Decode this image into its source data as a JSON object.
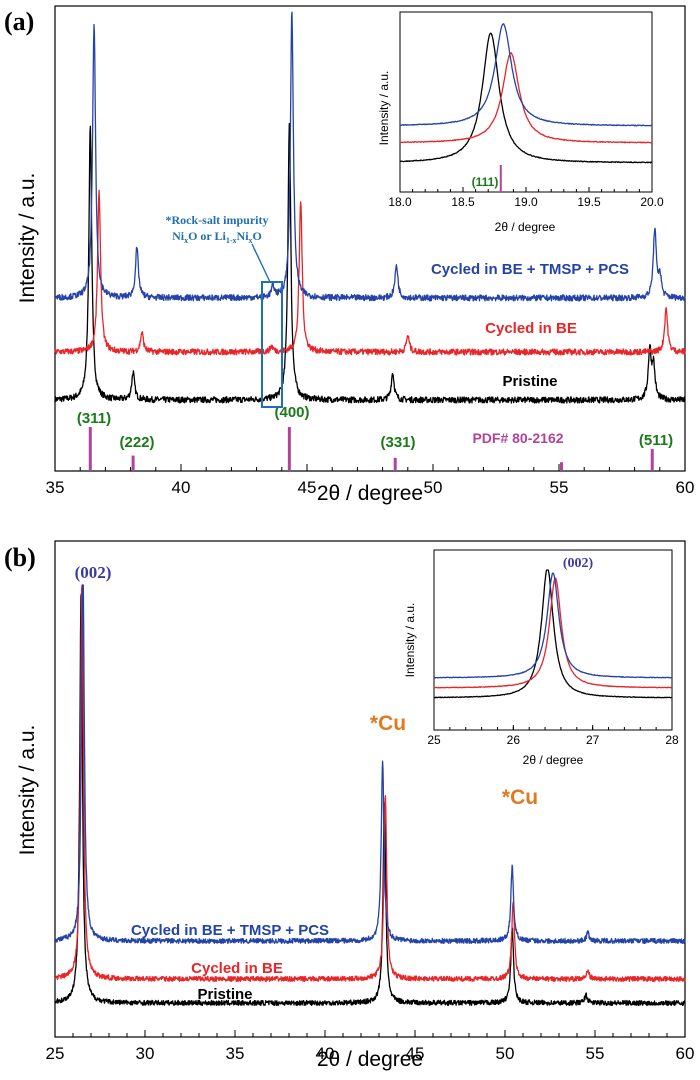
{
  "chart_data": [
    {
      "panel_label": "(a)",
      "type": "line",
      "xlabel": "2θ / degree",
      "ylabel": "Intensity / a.u.",
      "xlim": [
        35,
        60
      ],
      "xticks": [
        "35",
        "40",
        "45",
        "50",
        "55",
        "60"
      ],
      "series": [
        {
          "name": "Pristine",
          "label": "Pristine",
          "color": "#000000",
          "peaks": [
            [
              36.4,
              100
            ],
            [
              38.1,
              10
            ],
            [
              44.3,
              100
            ],
            [
              48.4,
              10
            ],
            [
              58.6,
              18
            ],
            [
              58.75,
              12
            ]
          ]
        },
        {
          "name": "Cycled in BE",
          "label": "Cycled in BE",
          "color": "#e8262a",
          "peaks": [
            [
              36.75,
              58
            ],
            [
              38.45,
              7
            ],
            [
              43.6,
              2
            ],
            [
              44.75,
              55
            ],
            [
              49.0,
              6
            ],
            [
              59.25,
              16
            ]
          ]
        },
        {
          "name": "Cycled in BE + TMSP + PCS",
          "label": "Cycled in BE + TMSP + PCS",
          "color": "#2443a8",
          "peaks": [
            [
              36.55,
              100
            ],
            [
              38.25,
              18
            ],
            [
              43.65,
              4
            ],
            [
              44.4,
              105
            ],
            [
              48.55,
              12
            ],
            [
              58.8,
              25
            ],
            [
              59.0,
              8
            ]
          ]
        }
      ],
      "reference": {
        "label": "PDF# 80-2162",
        "color": "#b2439b",
        "lines": [
          {
            "x": 36.4,
            "height": 1.0,
            "hkl": "(311)"
          },
          {
            "x": 38.1,
            "height": 0.35,
            "hkl": "(222)"
          },
          {
            "x": 44.3,
            "height": 1.0,
            "hkl": "(400)"
          },
          {
            "x": 48.5,
            "height": 0.3,
            "hkl": "(331)"
          },
          {
            "x": 55.1,
            "height": 0.2,
            "hkl": ""
          },
          {
            "x": 58.7,
            "height": 0.5,
            "hkl": "(511)"
          }
        ]
      },
      "annotation": {
        "line1": "*Rock-salt impurity",
        "line2_a": "Ni",
        "line2_b": "x",
        "line2_c": "O or Li",
        "line2_d": "1-x",
        "line2_e": "Ni",
        "line2_f": "x",
        "line2_g": "O",
        "x_range": [
          43.2,
          44.0
        ]
      },
      "inset": {
        "type": "line",
        "xlabel": "2θ / degree",
        "ylabel": "Intensity / a.u.",
        "xlim": [
          18.0,
          20.0
        ],
        "xticks": [
          "18.0",
          "18.5",
          "19.0",
          "19.5",
          "20.0"
        ],
        "reference_x": 18.8,
        "reference_label": "(111)",
        "peaks": [
          {
            "series": "Pristine",
            "center": 18.72
          },
          {
            "series": "Cycled in BE",
            "center": 18.88
          },
          {
            "series": "Cycled in BE + TMSP + PCS",
            "center": 18.82
          }
        ]
      }
    },
    {
      "panel_label": "(b)",
      "type": "line",
      "xlabel": "2θ / degree",
      "ylabel": "Intensity / a.u.",
      "xlim": [
        25,
        60
      ],
      "xticks": [
        "25",
        "30",
        "35",
        "40",
        "45",
        "50",
        "55",
        "60"
      ],
      "series": [
        {
          "name": "Pristine",
          "label": "Pristine",
          "color": "#000000",
          "peaks": [
            [
              26.45,
              100
            ],
            [
              43.3,
              48
            ],
            [
              50.4,
              18
            ],
            [
              54.5,
              2
            ]
          ]
        },
        {
          "name": "Cycled in BE",
          "label": "Cycled in BE",
          "color": "#e8262a",
          "peaks": [
            [
              26.5,
              100
            ],
            [
              43.35,
              45
            ],
            [
              50.45,
              19
            ],
            [
              54.6,
              2
            ]
          ]
        },
        {
          "name": "Cycled in BE + TMSP + PCS",
          "label": "Cycled in BE + TMSP + PCS",
          "color": "#2443a8",
          "peaks": [
            [
              26.55,
              95
            ],
            [
              43.2,
              44
            ],
            [
              50.4,
              18
            ],
            [
              54.6,
              2
            ]
          ]
        }
      ],
      "hkl_label": "(002)",
      "cu_labels": [
        "*Cu",
        "*Cu"
      ],
      "inset": {
        "type": "line",
        "xlabel": "2θ / degree",
        "ylabel": "Intensity / a.u.",
        "xlim": [
          25,
          28
        ],
        "xticks": [
          "25",
          "26",
          "27",
          "28"
        ],
        "hkl_label": "(002)",
        "peaks": [
          {
            "series": "Pristine",
            "center": 26.43
          },
          {
            "series": "Cycled in BE",
            "center": 26.53
          },
          {
            "series": "Cycled in BE + TMSP + PCS",
            "center": 26.5
          }
        ]
      }
    }
  ]
}
